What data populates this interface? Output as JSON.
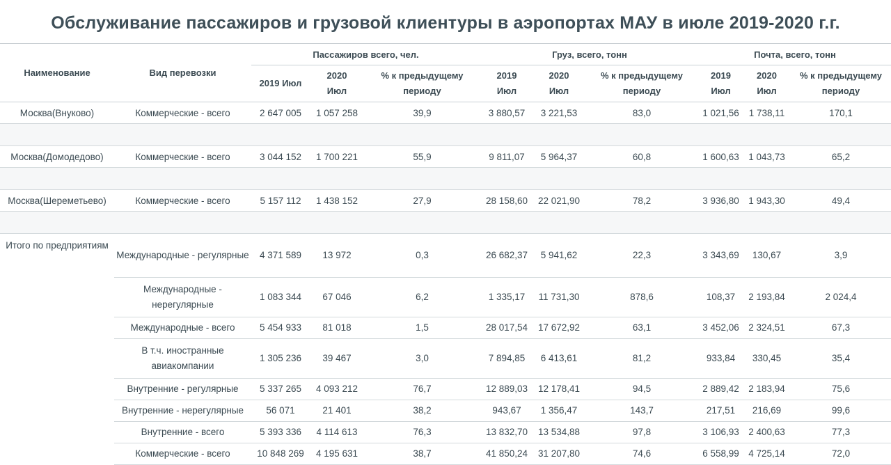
{
  "title": "Обслуживание пассажиров и грузовой клиентуры в аэропортах МАУ в июле 2019-2020 г.г.",
  "headers": {
    "name": "Наименование",
    "type": "Вид перевозки",
    "group_passengers": "Пассажиров всего, чел.",
    "group_cargo": "Груз, всего, тонн",
    "group_mail": "Почта, всего, тонн",
    "pass_2019": "2019 Июл",
    "pass_2020_year": "2020",
    "pass_2020_month": "Июл",
    "pass_pct": "% к предыдущему периоду",
    "cargo_2019_year": "2019",
    "cargo_2019_month": "Июл",
    "cargo_2020_year": "2020",
    "cargo_2020_month": "Июл",
    "cargo_pct": "% к предыдущему периоду",
    "mail_2019_year": "2019",
    "mail_2019_month": "Июл",
    "mail_2020_year": "2020",
    "mail_2020_month": "Июл",
    "mail_pct": "% к предыдущему периоду"
  },
  "rows": [
    {
      "name": "Москва(Внуково)",
      "type": "Коммерческие - всего",
      "p19": "2 647 005",
      "p20": "1 057 258",
      "pp": "39,9",
      "c19": "3 880,57",
      "c20": "3 221,53",
      "cp": "83,0",
      "m19": "1 021,56",
      "m20": "1 738,11",
      "mp": "170,1"
    },
    {
      "name": "Москва(Домодедово)",
      "type": "Коммерческие - всего",
      "p19": "3 044 152",
      "p20": "1 700 221",
      "pp": "55,9",
      "c19": "9 811,07",
      "c20": "5 964,37",
      "cp": "60,8",
      "m19": "1 600,63",
      "m20": "1 043,73",
      "mp": "65,2"
    },
    {
      "name": "Москва(Шереметьево)",
      "type": "Коммерческие - всего",
      "p19": "5 157 112",
      "p20": "1 438 152",
      "pp": "27,9",
      "c19": "28 158,60",
      "c20": "22 021,90",
      "cp": "78,2",
      "m19": "3 936,80",
      "m20": "1 943,30",
      "mp": "49,4"
    }
  ],
  "total": {
    "name": "Итого по предприятиям",
    "rows": [
      {
        "type": "Международные - регулярные",
        "p19": "4 371 589",
        "p20": "13 972",
        "pp": "0,3",
        "c19": "26 682,37",
        "c20": "5 941,62",
        "cp": "22,3",
        "m19": "3 343,69",
        "m20": "130,67",
        "mp": "3,9"
      },
      {
        "type": "Международные - нерегулярные",
        "p19": "1 083 344",
        "p20": "67 046",
        "pp": "6,2",
        "c19": "1 335,17",
        "c20": "11 731,30",
        "cp": "878,6",
        "m19": "108,37",
        "m20": "2 193,84",
        "mp": "2 024,4"
      },
      {
        "type": "Международные - всего",
        "p19": "5 454 933",
        "p20": "81 018",
        "pp": "1,5",
        "c19": "28 017,54",
        "c20": "17 672,92",
        "cp": "63,1",
        "m19": "3 452,06",
        "m20": "2 324,51",
        "mp": "67,3"
      },
      {
        "type": "В т.ч. иностранные авиакомпании",
        "p19": "1 305 236",
        "p20": "39 467",
        "pp": "3,0",
        "c19": "7 894,85",
        "c20": "6 413,61",
        "cp": "81,2",
        "m19": "933,84",
        "m20": "330,45",
        "mp": "35,4"
      },
      {
        "type": "Внутренние - регулярные",
        "p19": "5 337 265",
        "p20": "4 093 212",
        "pp": "76,7",
        "c19": "12 889,03",
        "c20": "12 178,41",
        "cp": "94,5",
        "m19": "2 889,42",
        "m20": "2 183,94",
        "mp": "75,6"
      },
      {
        "type": "Внутренние - нерегулярные",
        "p19": "56 071",
        "p20": "21 401",
        "pp": "38,2",
        "c19": "943,67",
        "c20": "1 356,47",
        "cp": "143,7",
        "m19": "217,51",
        "m20": "216,69",
        "mp": "99,6"
      },
      {
        "type": "Внутренние - всего",
        "p19": "5 393 336",
        "p20": "4 114 613",
        "pp": "76,3",
        "c19": "13 832,70",
        "c20": "13 534,88",
        "cp": "97,8",
        "m19": "3 106,93",
        "m20": "2 400,63",
        "mp": "77,3"
      },
      {
        "type": "Коммерческие - всего",
        "p19": "10 848 269",
        "p20": "4 195 631",
        "pp": "38,7",
        "c19": "41 850,24",
        "c20": "31 207,80",
        "cp": "74,6",
        "m19": "6 558,99",
        "m20": "4 725,14",
        "mp": "72,0"
      }
    ]
  }
}
